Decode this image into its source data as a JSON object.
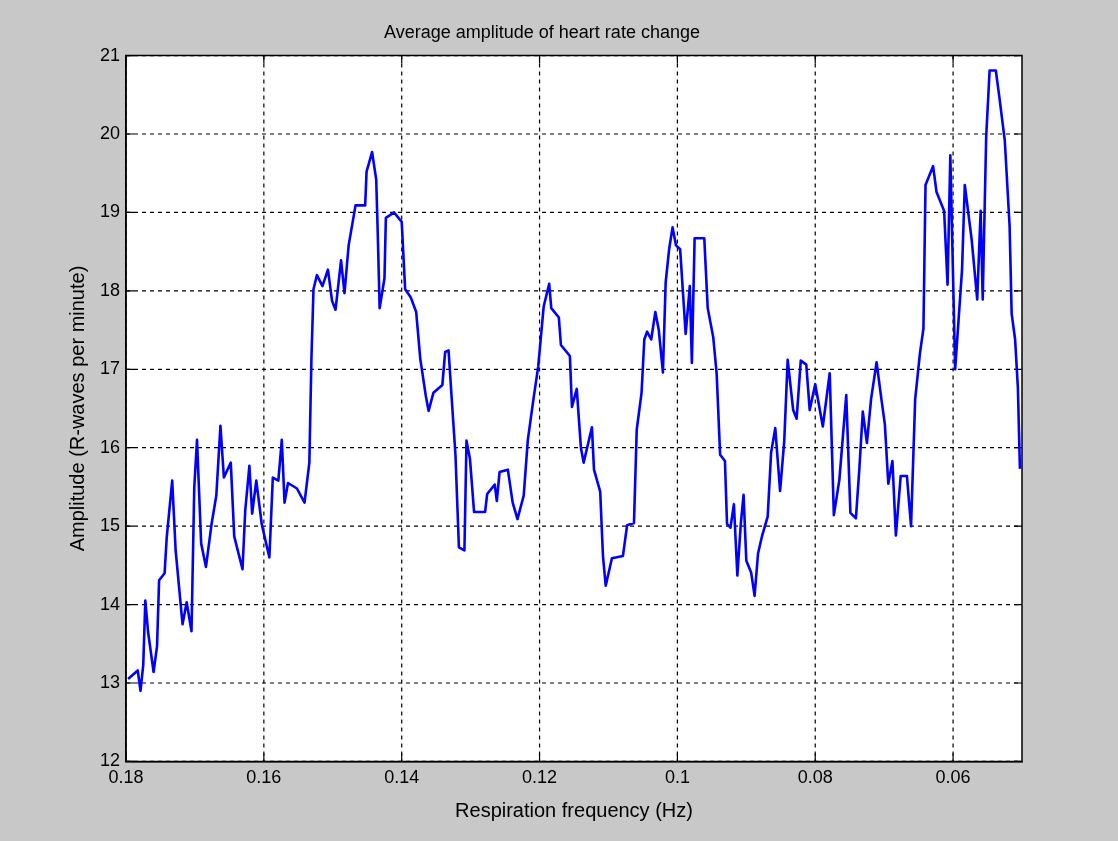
{
  "chart_data": {
    "type": "line",
    "title": "Average amplitude of heart rate change",
    "xlabel": "Respiration frequency (Hz)",
    "ylabel": "Amplitude (R-waves per minute)",
    "xlim": [
      0.18,
      0.05
    ],
    "xticks": [
      0.18,
      0.16,
      0.14,
      0.12,
      0.1,
      0.08,
      0.06
    ],
    "ylim": [
      12,
      21
    ],
    "yticks": [
      12,
      13,
      14,
      15,
      16,
      17,
      18,
      19,
      20,
      21
    ],
    "grid": true,
    "legend": false,
    "line_style": "solid",
    "marker": "none",
    "series": [
      {
        "color": "#0000ff",
        "x": [
          0.1797,
          0.1783,
          0.1779,
          0.1775,
          0.1772,
          0.1768,
          0.176,
          0.1755,
          0.1752,
          0.1744,
          0.1741,
          0.1733,
          0.1728,
          0.1723,
          0.1718,
          0.1712,
          0.1705,
          0.1701,
          0.1697,
          0.1691,
          0.1684,
          0.1676,
          0.1669,
          0.1663,
          0.1658,
          0.1648,
          0.1643,
          0.1631,
          0.1627,
          0.1621,
          0.1617,
          0.1611,
          0.1603,
          0.1592,
          0.1587,
          0.1579,
          0.1574,
          0.157,
          0.1565,
          0.1552,
          0.1541,
          0.1534,
          0.1531,
          0.1528,
          0.1523,
          0.1515,
          0.1507,
          0.1501,
          0.1496,
          0.1488,
          0.1483,
          0.1477,
          0.1467,
          0.1453,
          0.1451,
          0.1443,
          0.1437,
          0.1435,
          0.1432,
          0.1425,
          0.1423,
          0.1411,
          0.14,
          0.1395,
          0.1387,
          0.1379,
          0.1373,
          0.1365,
          0.1361,
          0.1354,
          0.1341,
          0.1337,
          0.1332,
          0.1328,
          0.1322,
          0.1317,
          0.1309,
          0.1306,
          0.1301,
          0.1295,
          0.1279,
          0.1276,
          0.1265,
          0.1262,
          0.1258,
          0.1246,
          0.1239,
          0.1232,
          0.1223,
          0.1217,
          0.1209,
          0.1202,
          0.1194,
          0.1186,
          0.1183,
          0.1172,
          0.1169,
          0.1156,
          0.1153,
          0.1146,
          0.114,
          0.1136,
          0.1124,
          0.1121,
          0.1112,
          0.1108,
          0.1104,
          0.1095,
          0.1079,
          0.1073,
          0.1063,
          0.1059,
          0.1052,
          0.1048,
          0.1044,
          0.1038,
          0.1032,
          0.1027,
          0.1021,
          0.1017,
          0.1012,
          0.1007,
          0.1002,
          0.0996,
          0.0988,
          0.0982,
          0.0979,
          0.0975,
          0.0961,
          0.0956,
          0.0948,
          0.0943,
          0.0938,
          0.0931,
          0.0928,
          0.0923,
          0.0918,
          0.0913,
          0.0908,
          0.0904,
          0.09,
          0.0893,
          0.0888,
          0.0883,
          0.0877,
          0.0869,
          0.0864,
          0.0858,
          0.0851,
          0.0845,
          0.084,
          0.0832,
          0.0827,
          0.0821,
          0.0813,
          0.0808,
          0.08,
          0.0789,
          0.0779,
          0.0773,
          0.0765,
          0.0755,
          0.0749,
          0.0741,
          0.0736,
          0.0731,
          0.0725,
          0.0719,
          0.0711,
          0.0704,
          0.0699,
          0.0694,
          0.0688,
          0.0683,
          0.0676,
          0.0667,
          0.0661,
          0.0655,
          0.0648,
          0.0643,
          0.064,
          0.0629,
          0.0624,
          0.0613,
          0.0608,
          0.0604,
          0.0597,
          0.0587,
          0.0583,
          0.0573,
          0.0565,
          0.056,
          0.0557,
          0.0552,
          0.0547,
          0.0538,
          0.0533,
          0.0525,
          0.0518,
          0.0515,
          0.051,
          0.0506,
          0.0503
        ],
        "values": [
          13.05,
          13.16,
          12.9,
          13.23,
          14.05,
          13.65,
          13.14,
          13.47,
          14.31,
          14.4,
          14.85,
          15.58,
          14.69,
          14.22,
          13.75,
          14.03,
          13.66,
          15.49,
          16.1,
          14.78,
          14.48,
          15.02,
          15.39,
          16.28,
          15.62,
          15.81,
          14.87,
          14.45,
          15.2,
          15.77,
          15.16,
          15.58,
          15.02,
          14.6,
          15.62,
          15.58,
          16.1,
          15.3,
          15.55,
          15.48,
          15.3,
          15.81,
          17.13,
          18.02,
          18.2,
          18.06,
          18.27,
          17.87,
          17.76,
          18.39,
          17.97,
          18.58,
          19.09,
          19.09,
          19.52,
          19.77,
          19.42,
          18.81,
          17.78,
          18.16,
          18.93,
          19.0,
          18.88,
          18.02,
          17.92,
          17.73,
          17.13,
          16.66,
          16.47,
          16.7,
          16.8,
          17.22,
          17.24,
          16.7,
          15.91,
          14.73,
          14.69,
          16.09,
          15.86,
          15.18,
          15.18,
          15.41,
          15.53,
          15.32,
          15.69,
          15.72,
          15.3,
          15.09,
          15.39,
          16.1,
          16.61,
          17.03,
          17.8,
          18.09,
          17.78,
          17.66,
          17.31,
          17.17,
          16.52,
          16.75,
          16.0,
          15.81,
          16.26,
          15.72,
          15.44,
          14.62,
          14.24,
          14.59,
          14.62,
          15.01,
          15.04,
          16.23,
          16.7,
          17.38,
          17.48,
          17.38,
          17.73,
          17.5,
          16.96,
          18.11,
          18.53,
          18.81,
          18.58,
          18.53,
          17.45,
          18.06,
          17.08,
          18.67,
          18.67,
          17.78,
          17.41,
          16.94,
          15.91,
          15.83,
          15.03,
          14.98,
          15.28,
          14.37,
          15.03,
          15.4,
          14.56,
          14.41,
          14.11,
          14.65,
          14.88,
          15.12,
          15.94,
          16.25,
          15.45,
          16.08,
          17.12,
          16.48,
          16.37,
          17.11,
          17.06,
          16.48,
          16.81,
          16.27,
          16.95,
          15.14,
          15.59,
          16.67,
          15.17,
          15.1,
          15.73,
          16.46,
          16.06,
          16.62,
          17.09,
          16.62,
          16.3,
          15.54,
          15.83,
          14.88,
          15.64,
          15.64,
          15.0,
          16.62,
          17.21,
          17.52,
          19.35,
          19.59,
          19.26,
          19.02,
          18.08,
          19.73,
          17.0,
          18.27,
          19.35,
          18.65,
          17.89,
          19.02,
          17.89,
          19.96,
          20.81,
          20.81,
          20.48,
          19.92,
          18.83,
          17.71,
          17.38,
          16.77,
          15.73
        ]
      }
    ]
  }
}
